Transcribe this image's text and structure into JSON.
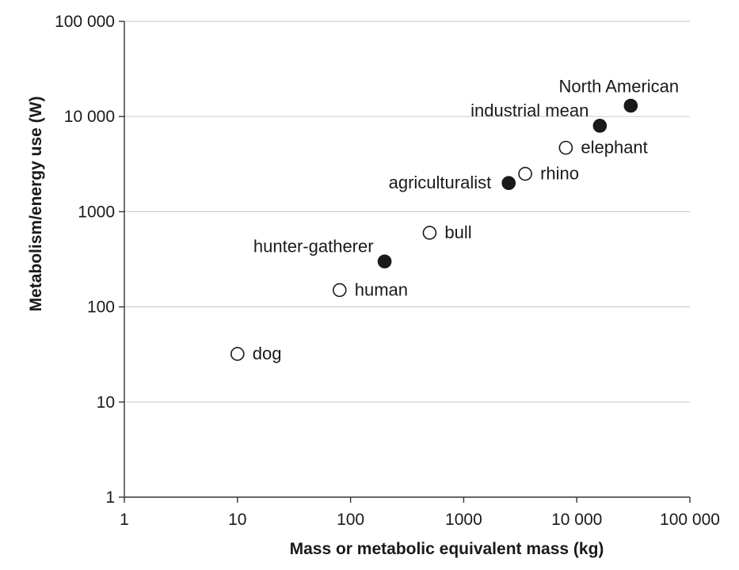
{
  "chart_data": {
    "type": "scatter",
    "title": "",
    "xlabel": "Mass or metabolic equivalent mass (kg)",
    "ylabel": "Metabolism/energy use (W)",
    "xscale": "log",
    "yscale": "log",
    "xlim": [
      1,
      100000
    ],
    "ylim": [
      1,
      100000
    ],
    "grid": "horizontal",
    "x_ticks": [
      1,
      10,
      100,
      1000,
      10000,
      100000
    ],
    "x_tick_labels": [
      "1",
      "10",
      "100",
      "1000",
      "10 000",
      "100 000"
    ],
    "y_ticks": [
      1,
      10,
      100,
      1000,
      10000,
      100000
    ],
    "y_tick_labels": [
      "1",
      "10",
      "100",
      "1000",
      "10 000",
      "100 000"
    ],
    "marker_fill_colors": {
      "animal": "#ffffff",
      "human_society": "#1a1a1a"
    },
    "points": [
      {
        "label": "dog",
        "x": 10,
        "y": 32,
        "fill": "open",
        "label_pos": "right"
      },
      {
        "label": "human",
        "x": 80,
        "y": 150,
        "fill": "open",
        "label_pos": "right"
      },
      {
        "label": "hunter-gatherer",
        "x": 200,
        "y": 300,
        "fill": "filled",
        "label_pos": "above-left"
      },
      {
        "label": "bull",
        "x": 500,
        "y": 600,
        "fill": "open",
        "label_pos": "right"
      },
      {
        "label": "agriculturalist",
        "x": 2500,
        "y": 2000,
        "fill": "filled",
        "label_pos": "left"
      },
      {
        "label": "rhino",
        "x": 3500,
        "y": 2500,
        "fill": "open",
        "label_pos": "right"
      },
      {
        "label": "elephant",
        "x": 8000,
        "y": 4700,
        "fill": "open",
        "label_pos": "right"
      },
      {
        "label": "industrial mean",
        "x": 16000,
        "y": 8000,
        "fill": "filled",
        "label_pos": "above-left"
      },
      {
        "label": "North American",
        "x": 30000,
        "y": 13000,
        "fill": "filled",
        "label_pos": "above"
      }
    ]
  }
}
